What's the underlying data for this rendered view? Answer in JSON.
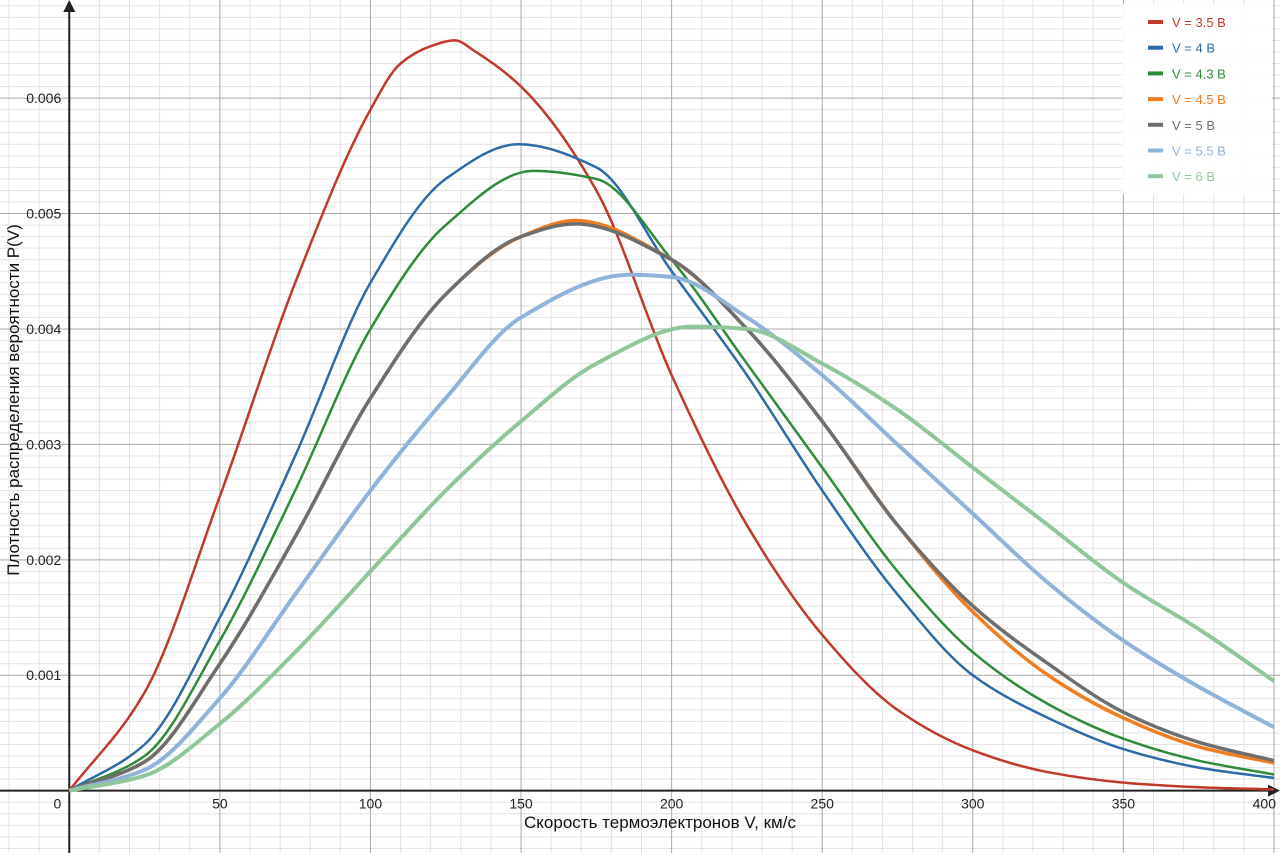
{
  "chart_data": {
    "type": "line",
    "xlabel": "Скорость термоэлектронов V, км/с",
    "ylabel": "Плотность распределения вероятности P(V)",
    "xlim": [
      -23,
      402
    ],
    "ylim": [
      -0.00054,
      0.00685
    ],
    "x_ticks": [
      0,
      50,
      100,
      150,
      200,
      250,
      300,
      350,
      400
    ],
    "y_ticks": [
      0.001,
      0.002,
      0.003,
      0.004,
      0.005,
      0.006
    ],
    "x_tick_labels": [
      "0",
      "50",
      "100",
      "150",
      "200",
      "250",
      "300",
      "350",
      "400"
    ],
    "y_tick_labels": [
      "0.001",
      "0.002",
      "0.003",
      "0.004",
      "0.005",
      "0.006"
    ],
    "grid": true,
    "legend_position": "top-right",
    "series": [
      {
        "name": "V = 3.5 В",
        "color": "#c0392b",
        "x": [
          0,
          25,
          50,
          75,
          100,
          110,
          120,
          128,
          135,
          150,
          175,
          200,
          225,
          250,
          275,
          300,
          325,
          350,
          375,
          400
        ],
        "values": [
          0,
          0.00085,
          0.00255,
          0.0044,
          0.0059,
          0.0063,
          0.00645,
          0.0065,
          0.0064,
          0.0061,
          0.0052,
          0.0036,
          0.0023,
          0.00135,
          0.0007,
          0.00035,
          0.00016,
          7e-05,
          3e-05,
          1e-05
        ]
      },
      {
        "name": "V = 4 В",
        "color": "#2d6aa8",
        "x": [
          0,
          25,
          50,
          75,
          100,
          125,
          149,
          175,
          200,
          225,
          250,
          275,
          300,
          325,
          350,
          375,
          400
        ],
        "values": [
          0,
          0.0004,
          0.0015,
          0.0029,
          0.0044,
          0.0053,
          0.0056,
          0.0054,
          0.0045,
          0.0036,
          0.0026,
          0.0017,
          0.001,
          0.00063,
          0.00036,
          0.0002,
          0.00011
        ]
      },
      {
        "name": "V = 4.3 В",
        "color": "#2f8a3a",
        "x": [
          0,
          25,
          50,
          75,
          100,
          125,
          154,
          175,
          200,
          225,
          250,
          275,
          300,
          325,
          350,
          375,
          400
        ],
        "values": [
          0,
          0.0003,
          0.0013,
          0.0026,
          0.004,
          0.0049,
          0.00537,
          0.0053,
          0.0046,
          0.0037,
          0.0028,
          0.0019,
          0.0012,
          0.00075,
          0.00045,
          0.00026,
          0.00014
        ]
      },
      {
        "name": "V = 4.5 В",
        "color": "#ef7d22",
        "x": [
          0,
          25,
          50,
          75,
          100,
          125,
          150,
          168,
          200,
          225,
          250,
          275,
          300,
          325,
          350,
          375,
          400
        ],
        "values": [
          0,
          0.00025,
          0.0011,
          0.0022,
          0.0034,
          0.0043,
          0.0048,
          0.00494,
          0.0046,
          0.004,
          0.0032,
          0.0023,
          0.00155,
          0.001,
          0.00063,
          0.00038,
          0.00024
        ]
      },
      {
        "name": "V = 5 В",
        "color": "#6e6e6e",
        "x": [
          0,
          25,
          50,
          75,
          100,
          125,
          150,
          168,
          200,
          225,
          250,
          275,
          300,
          325,
          350,
          375,
          400
        ],
        "values": [
          0,
          0.00025,
          0.0011,
          0.0022,
          0.0034,
          0.0043,
          0.0048,
          0.00491,
          0.0046,
          0.004,
          0.0032,
          0.0023,
          0.0016,
          0.0011,
          0.00068,
          0.00042,
          0.00026
        ]
      },
      {
        "name": "V = 5.5 В",
        "color": "#8fb3d9",
        "x": [
          0,
          25,
          50,
          75,
          100,
          125,
          150,
          186,
          200,
          225,
          250,
          275,
          300,
          325,
          350,
          375,
          400
        ],
        "values": [
          0,
          0.00018,
          0.0008,
          0.0017,
          0.0026,
          0.0034,
          0.0041,
          0.00447,
          0.00445,
          0.0041,
          0.0036,
          0.003,
          0.0024,
          0.0018,
          0.0013,
          0.0009,
          0.00055
        ]
      },
      {
        "name": "V = 6 В",
        "color": "#8fc79a",
        "x": [
          0,
          25,
          50,
          75,
          100,
          125,
          150,
          175,
          207,
          225,
          250,
          275,
          300,
          325,
          350,
          375,
          400
        ],
        "values": [
          0,
          0.00013,
          0.00058,
          0.0012,
          0.0019,
          0.0026,
          0.0032,
          0.0037,
          0.00402,
          0.004,
          0.0037,
          0.0033,
          0.0028,
          0.0023,
          0.0018,
          0.0014,
          0.00095
        ]
      }
    ]
  }
}
